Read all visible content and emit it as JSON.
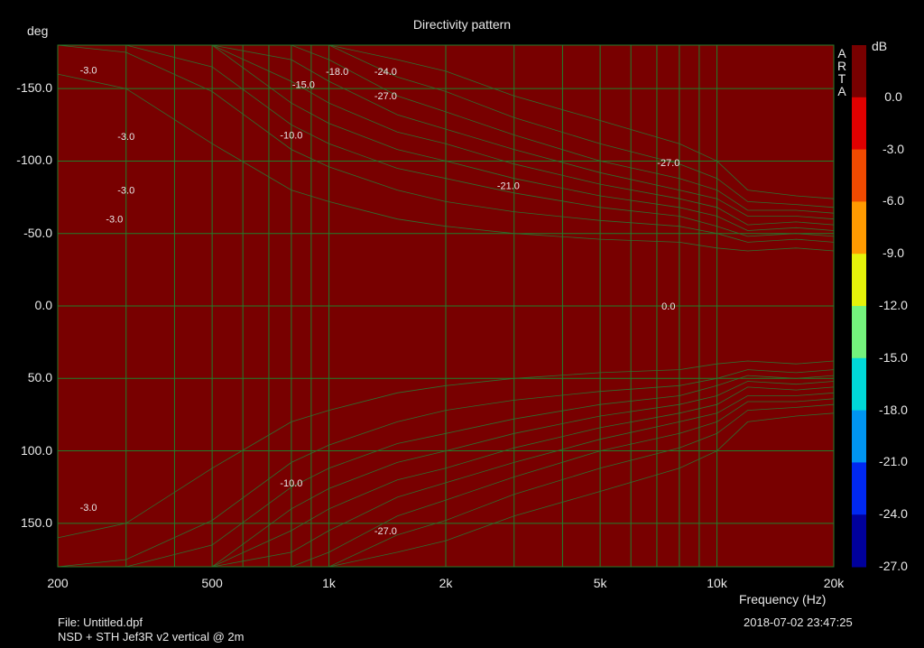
{
  "chart_data": {
    "type": "heatmap",
    "title": "Directivity pattern",
    "ylabel": "deg",
    "xlabel": "Frequency (Hz)",
    "x_scale": "log",
    "xlim": [
      200,
      20000
    ],
    "ylim": [
      -180,
      180
    ],
    "x_ticks": [
      {
        "value": 200,
        "label": "200"
      },
      {
        "value": 500,
        "label": "500"
      },
      {
        "value": 1000,
        "label": "1k"
      },
      {
        "value": 2000,
        "label": "2k"
      },
      {
        "value": 5000,
        "label": "5k"
      },
      {
        "value": 10000,
        "label": "10k"
      },
      {
        "value": 20000,
        "label": "20k"
      }
    ],
    "y_ticks": [
      {
        "value": -150,
        "label": "-150.0"
      },
      {
        "value": -100,
        "label": "-100.0"
      },
      {
        "value": -50,
        "label": "-50.0"
      },
      {
        "value": 0,
        "label": "0.0"
      },
      {
        "value": 50,
        "label": "50.0"
      },
      {
        "value": 100,
        "label": "100.0"
      },
      {
        "value": 150,
        "label": "150.0"
      }
    ],
    "colorbar": {
      "unit": "dB",
      "levels": [
        "0.0",
        "-3.0",
        "-6.0",
        "-9.0",
        "-12.0",
        "-15.0",
        "-18.0",
        "-21.0",
        "-24.0",
        "-27.0"
      ],
      "colors": [
        "#780000",
        "#e00000",
        "#f04a00",
        "#ff9a00",
        "#e6f20a",
        "#74f27c",
        "#00d8d8",
        "#0094f0",
        "#0028f0",
        "#00009c"
      ]
    },
    "contour_boundaries": {
      "freq_hz": [
        200,
        300,
        500,
        800,
        1000,
        1500,
        2000,
        3000,
        5000,
        8000,
        10000,
        12000,
        16000,
        20000
      ],
      "angles_deg": [
        [
          180,
          180,
          180,
          180,
          180,
          180,
          180,
          180,
          180,
          180,
          180,
          180,
          180,
          180
        ],
        [
          160,
          150,
          112,
          80,
          72,
          60,
          55,
          50,
          46,
          44,
          40,
          38,
          40,
          38
        ],
        [
          180,
          175,
          148,
          108,
          96,
          80,
          72,
          65,
          59,
          55,
          50,
          44,
          46,
          44
        ],
        [
          180,
          180,
          165,
          125,
          112,
          95,
          88,
          78,
          68,
          62,
          55,
          48,
          50,
          48
        ],
        [
          180,
          180,
          180,
          140,
          126,
          108,
          100,
          88,
          76,
          68,
          62,
          52,
          54,
          52
        ],
        [
          180,
          180,
          180,
          155,
          140,
          120,
          112,
          98,
          84,
          74,
          68,
          56,
          58,
          56
        ],
        [
          180,
          180,
          180,
          170,
          155,
          132,
          122,
          108,
          92,
          80,
          74,
          62,
          62,
          60
        ],
        [
          180,
          180,
          180,
          180,
          170,
          145,
          134,
          118,
          100,
          88,
          80,
          66,
          66,
          64
        ],
        [
          180,
          180,
          180,
          180,
          180,
          158,
          148,
          130,
          112,
          98,
          88,
          72,
          70,
          68
        ],
        [
          180,
          180,
          180,
          180,
          180,
          170,
          162,
          145,
          128,
          112,
          100,
          80,
          76,
          74
        ]
      ]
    },
    "annotations": [
      {
        "text": "-3.0",
        "freq_hz": 240,
        "angle_deg": -163
      },
      {
        "text": "-3.0",
        "freq_hz": 300,
        "angle_deg": -117
      },
      {
        "text": "-3.0",
        "freq_hz": 300,
        "angle_deg": -80
      },
      {
        "text": "-3.0",
        "freq_hz": 280,
        "angle_deg": -60
      },
      {
        "text": "-3.0",
        "freq_hz": 240,
        "angle_deg": 139
      },
      {
        "text": "-15.0",
        "freq_hz": 860,
        "angle_deg": -153
      },
      {
        "text": "-18.0",
        "freq_hz": 1050,
        "angle_deg": -162
      },
      {
        "text": "-24.0",
        "freq_hz": 1400,
        "angle_deg": -162
      },
      {
        "text": "-27.0",
        "freq_hz": 1400,
        "angle_deg": -145
      },
      {
        "text": "-10.0",
        "freq_hz": 800,
        "angle_deg": -118
      },
      {
        "text": "-21.0",
        "freq_hz": 2900,
        "angle_deg": -83
      },
      {
        "text": "-27.0",
        "freq_hz": 7500,
        "angle_deg": -99
      },
      {
        "text": "-10.0",
        "freq_hz": 800,
        "angle_deg": 122
      },
      {
        "text": "-27.0",
        "freq_hz": 1400,
        "angle_deg": 155
      },
      {
        "text": "0.0",
        "freq_hz": 7500,
        "angle_deg": 0
      }
    ]
  },
  "arta_label": [
    "A",
    "R",
    "T",
    "A"
  ],
  "footer": {
    "file": "File: Untitled.dpf",
    "description": "NSD + STH Jef3R v2 vertical @ 2m",
    "timestamp": "2018-07-02   23:47:25"
  }
}
